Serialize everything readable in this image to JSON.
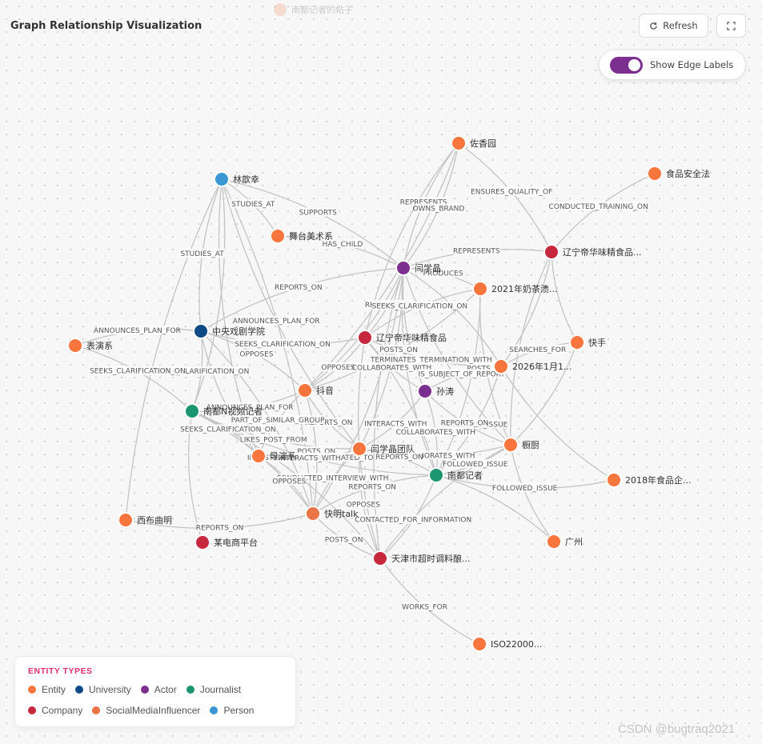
{
  "header": {
    "title": "Graph Relationship Visualization"
  },
  "ghost_node": {
    "label": "南都记者的帖子"
  },
  "toolbar": {
    "refresh_label": "Refresh",
    "refresh_icon": "refresh-icon",
    "fullscreen_icon": "fullscreen-icon"
  },
  "edge_toggle": {
    "label": "Show Edge Labels",
    "on": true
  },
  "colors": {
    "Entity": "#f8763d",
    "University": "#0d4a86",
    "Actor": "#7b2f8e",
    "Journalist": "#1c9470",
    "Company": "#c6283e",
    "SocialMediaInfluencer": "#ea7446",
    "Person": "#3b97d3"
  },
  "legend": {
    "title": "ENTITY TYPES",
    "items": [
      {
        "type": "Entity",
        "label": "Entity"
      },
      {
        "type": "University",
        "label": "University"
      },
      {
        "type": "Actor",
        "label": "Actor"
      },
      {
        "type": "Journalist",
        "label": "Journalist"
      },
      {
        "type": "Company",
        "label": "Company"
      },
      {
        "type": "SocialMediaInfluencer",
        "label": "SocialMediaInfluencer"
      },
      {
        "type": "Person",
        "label": "Person"
      }
    ]
  },
  "graph": {
    "nodes": [
      {
        "id": "zuoxiang",
        "label": "佐香园",
        "type": "Entity"
      },
      {
        "id": "shipin",
        "label": "食品安全法",
        "type": "Entity"
      },
      {
        "id": "linxin",
        "label": "林歆幸",
        "type": "Person"
      },
      {
        "id": "wutai",
        "label": "舞台美术系",
        "type": "Entity"
      },
      {
        "id": "yanxueman",
        "label": "闫学晶",
        "type": "Actor"
      },
      {
        "id": "liaoning1",
        "label": "辽宁帝华味精食品...",
        "type": "Company"
      },
      {
        "id": "naicha",
        "label": "2021年奶茶渍...",
        "type": "Entity"
      },
      {
        "id": "kuaishou",
        "label": "快手",
        "type": "Entity"
      },
      {
        "id": "zhongxi",
        "label": "中央戏剧学院",
        "type": "University"
      },
      {
        "id": "biaoyan",
        "label": "表演系",
        "type": "Entity"
      },
      {
        "id": "liaoning2",
        "label": "辽宁帝华味精食品",
        "type": "Company"
      },
      {
        "id": "jan2026",
        "label": "2026年1月1...",
        "type": "Entity"
      },
      {
        "id": "douyin",
        "label": "抖音",
        "type": "Entity"
      },
      {
        "id": "suntao",
        "label": "孙涛",
        "type": "Actor"
      },
      {
        "id": "nandu_n",
        "label": "南都N视频记者",
        "type": "Journalist"
      },
      {
        "id": "chuchu",
        "label": "橱厨",
        "type": "Entity"
      },
      {
        "id": "yxjteam",
        "label": "闫学晶团队",
        "type": "Entity"
      },
      {
        "id": "daoyan",
        "label": "导演系",
        "type": "Entity"
      },
      {
        "id": "nandu",
        "label": "南都记者",
        "type": "Journalist"
      },
      {
        "id": "food2018",
        "label": "2018年食品企...",
        "type": "Entity"
      },
      {
        "id": "xibu",
        "label": "西布曲明",
        "type": "Entity"
      },
      {
        "id": "kuaiming",
        "label": "快明talk",
        "type": "SocialMediaInfluencer"
      },
      {
        "id": "ecom",
        "label": "某电商平台",
        "type": "Company"
      },
      {
        "id": "guangzhou",
        "label": "广州",
        "type": "Entity"
      },
      {
        "id": "tianjin",
        "label": "天津市超时调料酿...",
        "type": "Company"
      },
      {
        "id": "iso",
        "label": "ISO22000...",
        "type": "Entity"
      }
    ],
    "edges": [
      {
        "from": "linxin",
        "to": "yanxueman",
        "label": "SUPPORTS"
      },
      {
        "from": "linxin",
        "to": "zhongxi",
        "label": "STUDIES_AT"
      },
      {
        "from": "linxin",
        "to": "wutai",
        "label": "STUDIES_AT"
      },
      {
        "from": "linxin",
        "to": "yxjteam",
        "label": "ANNOUNCES_PLAN_FOR"
      },
      {
        "from": "linxin",
        "to": "nandu_n",
        "label": ""
      },
      {
        "from": "linxin",
        "to": "daoyan",
        "label": ""
      },
      {
        "from": "linxin",
        "to": "kuaiming",
        "label": ""
      },
      {
        "from": "linxin",
        "to": "xibu",
        "label": ""
      },
      {
        "from": "wutai",
        "to": "yanxueman",
        "label": "HAS_CHILD"
      },
      {
        "from": "zuoxiang",
        "to": "yanxueman",
        "label": "REPRESENTS"
      },
      {
        "from": "zuoxiang",
        "to": "liaoning1",
        "label": "ENSURES_QUALITY_OF"
      },
      {
        "from": "zuoxiang",
        "to": "liaoning2",
        "label": ""
      },
      {
        "from": "zuoxiang",
        "to": "douyin",
        "label": ""
      },
      {
        "from": "shipin",
        "to": "liaoning1",
        "label": "CONDUCTED_TRAINING_ON"
      },
      {
        "from": "yanxueman",
        "to": "liaoning1",
        "label": "REPRESENTS"
      },
      {
        "from": "yanxueman",
        "to": "zuoxiang",
        "label": "OWNS_BRAND"
      },
      {
        "from": "yanxueman",
        "to": "naicha",
        "label": "PRODUCES"
      },
      {
        "from": "yanxueman",
        "to": "zhongxi",
        "label": "REPORTS_ON"
      },
      {
        "from": "yanxueman",
        "to": "liaoning2",
        "label": "REPRESENTS"
      },
      {
        "from": "yanxueman",
        "to": "suntao",
        "label": ""
      },
      {
        "from": "yanxueman",
        "to": "jan2026",
        "label": ""
      },
      {
        "from": "yanxueman",
        "to": "chuchu",
        "label": ""
      },
      {
        "from": "yanxueman",
        "to": "yxjteam",
        "label": ""
      },
      {
        "from": "yanxueman",
        "to": "nandu",
        "label": ""
      },
      {
        "from": "yanxueman",
        "to": "kuaiming",
        "label": ""
      },
      {
        "from": "yanxueman",
        "to": "tianjin",
        "label": ""
      },
      {
        "from": "yanxueman",
        "to": "douyin",
        "label": ""
      },
      {
        "from": "liaoning1",
        "to": "kuaishou",
        "label": ""
      },
      {
        "from": "liaoning1",
        "to": "jan2026",
        "label": ""
      },
      {
        "from": "liaoning1",
        "to": "chuchu",
        "label": ""
      },
      {
        "from": "naicha",
        "to": "douyin",
        "label": "POSTS_ON"
      },
      {
        "from": "naicha",
        "to": "chuchu",
        "label": "POSTS_ON"
      },
      {
        "from": "naicha",
        "to": "nandu",
        "label": ""
      },
      {
        "from": "kuaishou",
        "to": "jan2026",
        "label": "SEARCHES_FOR"
      },
      {
        "from": "kuaishou",
        "to": "chuchu",
        "label": ""
      },
      {
        "from": "zhongxi",
        "to": "biaoyan",
        "label": "ANNOUNCES_PLAN_FOR"
      },
      {
        "from": "zhongxi",
        "to": "douyin",
        "label": "OPPOSES"
      },
      {
        "from": "zhongxi",
        "to": "liaoning2",
        "label": "SEEKS_CLARIFICATION_ON"
      },
      {
        "from": "zhongxi",
        "to": "nandu_n",
        "label": "SEEKS_CLARIFICATION_ON"
      },
      {
        "from": "zhongxi",
        "to": "daoyan",
        "label": ""
      },
      {
        "from": "zhongxi",
        "to": "kuaiming",
        "label": ""
      },
      {
        "from": "liaoning2",
        "to": "jan2026",
        "label": "TERMINATES_TERMINATION_WITH"
      },
      {
        "from": "liaoning2",
        "to": "douyin",
        "label": "OPPOSES"
      },
      {
        "from": "liaoning2",
        "to": "suntao",
        "label": "COLLABORATES_WITH"
      },
      {
        "from": "liaoning2",
        "to": "nandu",
        "label": ""
      },
      {
        "from": "liaoning2",
        "to": "tianjin",
        "label": ""
      },
      {
        "from": "liaoning2",
        "to": "naicha",
        "label": "SEEKS_CLARIFICATION_ON"
      },
      {
        "from": "jan2026",
        "to": "suntao",
        "label": "IS_SUBJECT_OF_REPORT"
      },
      {
        "from": "jan2026",
        "to": "nandu",
        "label": "FOLLOWED_ISSUE"
      },
      {
        "from": "jan2026",
        "to": "food2018",
        "label": ""
      },
      {
        "from": "douyin",
        "to": "nandu_n",
        "label": "ANNOUNCES_PLAN_FOR"
      },
      {
        "from": "douyin",
        "to": "yxjteam",
        "label": "REPORTS_ON"
      },
      {
        "from": "douyin",
        "to": "kuaiming",
        "label": "POSTS_ON"
      },
      {
        "from": "douyin",
        "to": "daoyan",
        "label": "PART_OF_SIMILAR_GROUP"
      },
      {
        "from": "suntao",
        "to": "nandu",
        "label": "COLLABORATES_WITH"
      },
      {
        "from": "suntao",
        "to": "chuchu",
        "label": "REPORTS_ON"
      },
      {
        "from": "suntao",
        "to": "yxjteam",
        "label": "INTERACTS_WITH"
      },
      {
        "from": "nandu_n",
        "to": "yxjteam",
        "label": "LIKES_POST_FROM"
      },
      {
        "from": "nandu_n",
        "to": "daoyan",
        "label": "SEEKS_CLARIFICATION_ON"
      },
      {
        "from": "nandu_n",
        "to": "ecom",
        "label": ""
      },
      {
        "from": "nandu_n",
        "to": "kuaiming",
        "label": ""
      },
      {
        "from": "nandu_n",
        "to": "nandu",
        "label": "INVESTIGATES_ISSUE_RELATED_TO"
      },
      {
        "from": "nandu_n",
        "to": "tianjin",
        "label": ""
      },
      {
        "from": "nandu_n",
        "to": "biaoyan",
        "label": "SEEKS_CLARIFICATION_ON"
      },
      {
        "from": "chuchu",
        "to": "nandu",
        "label": "FOLLOWED_ISSUE"
      },
      {
        "from": "chuchu",
        "to": "guangzhou",
        "label": ""
      },
      {
        "from": "chuchu",
        "to": "yxjteam",
        "label": "COLLABORATES_WITH"
      },
      {
        "from": "chuchu",
        "to": "tianjin",
        "label": ""
      },
      {
        "from": "yxjteam",
        "to": "nandu",
        "label": "REPORTS_ON"
      },
      {
        "from": "yxjteam",
        "to": "kuaiming",
        "label": "CONDUCTED_INTERVIEW_WITH"
      },
      {
        "from": "yxjteam",
        "to": "daoyan",
        "label": "INTERACTS_WITH"
      },
      {
        "from": "yxjteam",
        "to": "tianjin",
        "label": "OPPOSES"
      },
      {
        "from": "daoyan",
        "to": "kuaiming",
        "label": "OPPOSES"
      },
      {
        "from": "nandu",
        "to": "food2018",
        "label": "FOLLOWED_ISSUE"
      },
      {
        "from": "nandu",
        "to": "guangzhou",
        "label": ""
      },
      {
        "from": "nandu",
        "to": "kuaiming",
        "label": "REPORTS_ON"
      },
      {
        "from": "nandu",
        "to": "tianjin",
        "label": "CONTACTED_FOR_INFORMATION"
      },
      {
        "from": "kuaiming",
        "to": "tianjin",
        "label": "POSTS_ON"
      },
      {
        "from": "kuaiming",
        "to": "xibu",
        "label": "REPORTS_ON"
      },
      {
        "from": "tianjin",
        "to": "iso",
        "label": "WORKS_FOR"
      }
    ]
  },
  "watermark": "CSDN @bugtraq2021"
}
